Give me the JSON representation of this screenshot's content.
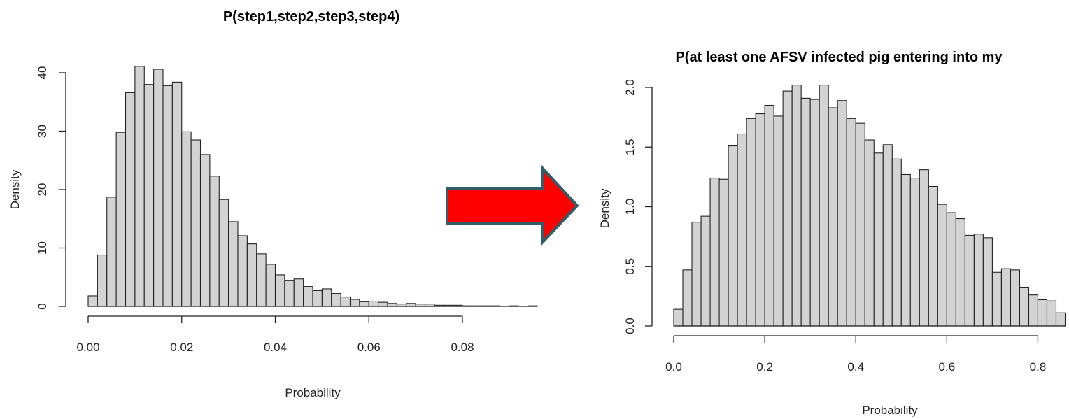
{
  "chart_data": [
    {
      "type": "bar",
      "title": "P(step1,step2,step3,step4)",
      "xlabel": "Probability",
      "ylabel": "Density",
      "xlim": [
        0,
        0.096
      ],
      "ylim": [
        0,
        40
      ],
      "x_ticks": [
        "0.00",
        "0.02",
        "0.04",
        "0.06",
        "0.08"
      ],
      "y_ticks": [
        "0",
        "10",
        "20",
        "30",
        "40"
      ],
      "bin_width": 0.002,
      "bin_start": 0,
      "values": [
        1.8,
        8.8,
        18.7,
        29.8,
        36.6,
        41.1,
        38.0,
        40.6,
        37.8,
        38.4,
        29.9,
        28.5,
        26.0,
        22.3,
        18.3,
        14.5,
        12.1,
        10.7,
        9.0,
        7.2,
        5.4,
        4.4,
        4.7,
        3.4,
        2.7,
        3.0,
        2.2,
        1.6,
        1.2,
        0.8,
        0.9,
        0.7,
        0.5,
        0.4,
        0.5,
        0.4,
        0.4,
        0.2,
        0.2,
        0.2,
        0.1,
        0.1,
        0.1,
        0.1,
        0.0,
        0.1,
        0.0,
        0.1
      ]
    },
    {
      "type": "bar",
      "title": "P(at least one AFSV infected pig entering into my",
      "xlabel": "Probability",
      "ylabel": "Density",
      "xlim": [
        0,
        0.85
      ],
      "ylim": [
        0,
        2.0
      ],
      "x_ticks": [
        "0.0",
        "0.2",
        "0.4",
        "0.6",
        "0.8"
      ],
      "y_ticks": [
        "0.0",
        "0.5",
        "1.0",
        "1.5",
        "2.0"
      ],
      "bin_width": 0.02,
      "bin_start": 0,
      "values": [
        0.14,
        0.47,
        0.87,
        0.92,
        1.24,
        1.23,
        1.51,
        1.61,
        1.74,
        1.78,
        1.85,
        1.76,
        1.97,
        2.02,
        1.91,
        1.9,
        2.02,
        1.83,
        1.89,
        1.74,
        1.7,
        1.56,
        1.45,
        1.52,
        1.4,
        1.27,
        1.24,
        1.31,
        1.17,
        1.02,
        0.95,
        0.9,
        0.76,
        0.77,
        0.74,
        0.45,
        0.48,
        0.47,
        0.32,
        0.26,
        0.22,
        0.21,
        0.11
      ]
    }
  ],
  "arrow": {
    "fill": "#ff0000",
    "stroke": "#2f5f68"
  },
  "icons": [
    "right-arrow-icon"
  ]
}
